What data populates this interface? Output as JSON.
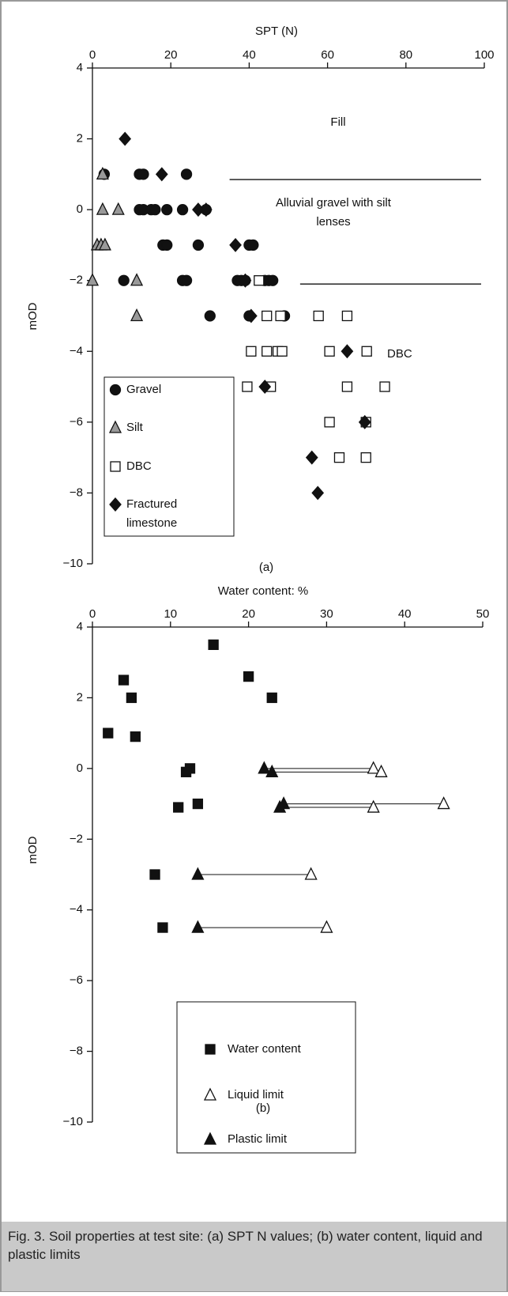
{
  "chart_data": [
    {
      "type": "scatter",
      "panel": "(a)",
      "x_label": "SPT (N)",
      "y_label": "mOD",
      "xlim": [
        0,
        100
      ],
      "xticks": [
        0,
        20,
        40,
        60,
        80,
        100
      ],
      "ylim": [
        -10,
        4
      ],
      "yticks": [
        {
          "value": -10,
          "label": "−10"
        },
        {
          "value": -8,
          "label": "−8"
        },
        {
          "value": -6,
          "label": "−6"
        },
        {
          "value": -4,
          "label": "−4"
        },
        {
          "value": -2,
          "label": "−2"
        },
        0,
        2,
        4
      ],
      "annotations": [
        "Fill",
        "Alluvial gravel with silt lenses",
        "DBC"
      ],
      "series": [
        {
          "name": "Gravel",
          "marker": "circle",
          "color": "#111111",
          "x": [
            3,
            12,
            13,
            24,
            12,
            13,
            15,
            16,
            19,
            23,
            29,
            18,
            19,
            27,
            40,
            41,
            8,
            23,
            24,
            37,
            38,
            39,
            44,
            45,
            46,
            30,
            40,
            49
          ],
          "y": [
            1,
            1,
            1,
            1,
            0,
            0,
            0,
            0,
            0,
            0,
            0,
            -1,
            -1,
            -1,
            -1,
            -1,
            -2,
            -2,
            -2,
            -2,
            -2,
            -2,
            -2,
            -2,
            -2,
            -3,
            -3,
            -3
          ]
        },
        {
          "name": "Silt",
          "marker": "triangle",
          "color": "#999999",
          "x": [
            2.6,
            2.6,
            6.6,
            1.2,
            2.2,
            3.2,
            0,
            11.3,
            11.3
          ],
          "y": [
            1,
            0,
            0,
            -1,
            -1,
            -1,
            -2,
            -2,
            -3
          ]
        },
        {
          "name": "DBC",
          "marker": "square",
          "color": "#ffffff",
          "x": [
            42.5,
            44.5,
            48,
            57.7,
            65,
            40.5,
            44.5,
            47.3,
            48.4,
            60.5,
            70,
            39.5,
            45.5,
            65,
            74.6,
            60.5,
            69.8,
            63,
            69.8
          ],
          "y": [
            -2,
            -3,
            -3,
            -3,
            -3,
            -4,
            -4,
            -4,
            -4,
            -4,
            -4,
            -5,
            -5,
            -5,
            -5,
            -6,
            -6,
            -7,
            -7
          ]
        },
        {
          "name": "Fractured limestone",
          "marker": "diamond",
          "color": "#111111",
          "x": [
            8.3,
            17.7,
            27,
            29,
            36.5,
            39,
            40.5,
            44,
            56,
            65,
            69.5,
            57.5
          ],
          "y": [
            2,
            1,
            0,
            0,
            -1,
            -2,
            -3,
            -5,
            -7,
            -4,
            -6,
            -8
          ]
        }
      ]
    },
    {
      "type": "scatter",
      "panel": "(b)",
      "x_label": "Water content: %",
      "y_label": "mOD",
      "xlim": [
        0,
        50
      ],
      "xticks": [
        0,
        10,
        20,
        30,
        40,
        50
      ],
      "ylim": [
        -10,
        4
      ],
      "yticks": [
        {
          "value": -10,
          "label": "−10"
        },
        {
          "value": -8,
          "label": "−8"
        },
        {
          "value": -6,
          "label": "−6"
        },
        {
          "value": -4,
          "label": "−4"
        },
        {
          "value": -2,
          "label": "−2"
        },
        0,
        2,
        4
      ],
      "series": [
        {
          "name": "Water content",
          "marker": "square",
          "color": "#111111",
          "x": [
            15.5,
            4,
            20,
            5,
            23,
            2,
            5.5,
            12.5,
            12,
            11,
            13.5,
            8,
            9
          ],
          "y": [
            3.5,
            2.5,
            2.6,
            2,
            2,
            1,
            0.9,
            0,
            -0.1,
            -1.1,
            -1,
            -3,
            -4.5
          ]
        },
        {
          "name": "Liquid limit",
          "marker": "triangle",
          "color": "#ffffff",
          "x": [
            36,
            37,
            45,
            36,
            28,
            30
          ],
          "y": [
            0,
            -0.1,
            -1,
            -1.1,
            -3,
            -4.5
          ]
        },
        {
          "name": "Plastic limit",
          "marker": "triangle",
          "color": "#111111",
          "x": [
            22,
            23,
            24.5,
            24,
            13.5,
            13.5
          ],
          "y": [
            0,
            -0.1,
            -1,
            -1.1,
            -3,
            -4.5
          ]
        }
      ]
    }
  ],
  "caption": "Fig. 3. Soil properties at test site: (a) SPT N values; (b) water content, liquid and plastic limits"
}
